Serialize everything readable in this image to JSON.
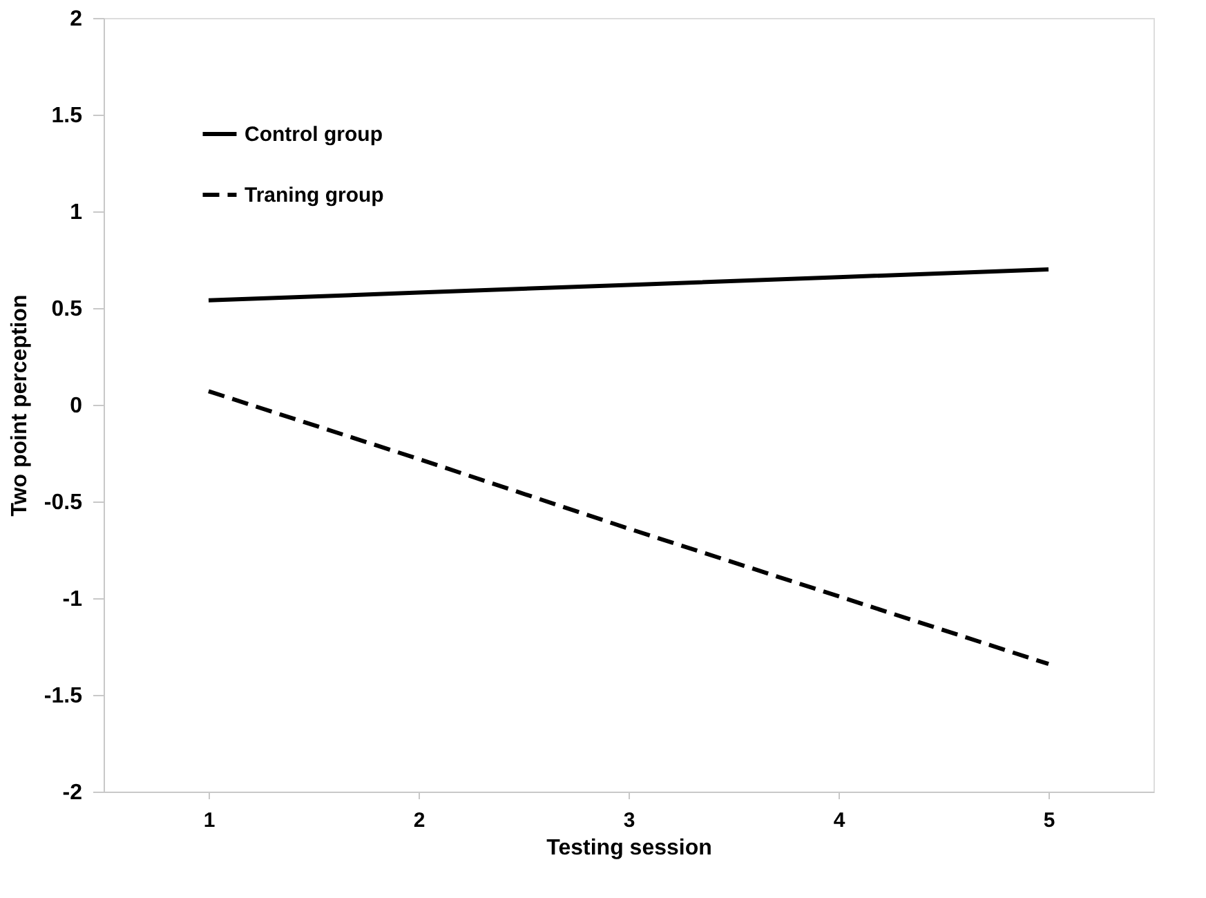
{
  "chart_data": {
    "type": "line",
    "xlabel": "Testing session",
    "ylabel": "Two point perception",
    "categories": [
      "1",
      "2",
      "3",
      "4",
      "5"
    ],
    "series": [
      {
        "name": "Control group",
        "color": "#000000",
        "line_style": "solid",
        "values": [
          0.54,
          0.58,
          0.62,
          0.66,
          0.7
        ]
      },
      {
        "name": "Traning group",
        "color": "#000000",
        "line_style": "dashed",
        "values": [
          0.07,
          -0.28,
          -0.64,
          -0.99,
          -1.34
        ]
      }
    ],
    "ylim": [
      -2,
      2
    ],
    "yticks": [
      -2,
      -1.5,
      -1,
      -0.5,
      0,
      0.5,
      1,
      1.5,
      2
    ],
    "grid": false,
    "legend": "top left",
    "marker": "none"
  }
}
